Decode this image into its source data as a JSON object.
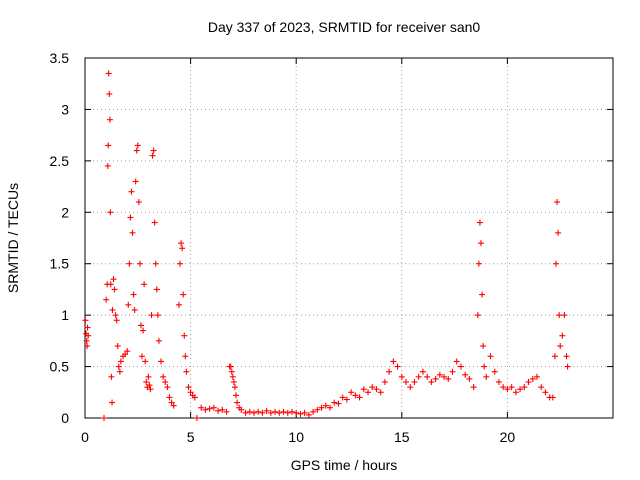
{
  "chart_data": {
    "type": "scatter",
    "title": "Day 337 of 2023, SRMTID for receiver san0",
    "xlabel": "GPS time / hours",
    "ylabel": "SRMTID / TECUs",
    "xlim": [
      0,
      25
    ],
    "ylim": [
      0,
      3.5
    ],
    "x_ticks": [
      0,
      5,
      10,
      15,
      20
    ],
    "y_ticks": [
      0,
      0.5,
      1,
      1.5,
      2,
      2.5,
      3,
      3.5
    ],
    "x_tick_labels": [
      "0",
      "5",
      "10",
      "15",
      "20"
    ],
    "y_tick_labels": [
      "0",
      "0.5",
      "1",
      "1.5",
      "2",
      "2.5",
      "3",
      "3.5"
    ],
    "grid": true,
    "marker": "+",
    "colors": {
      "series": "#ff0000",
      "grid": "#a0a0a0",
      "axis": "#000000"
    },
    "series": [
      {
        "name": "san0",
        "points": [
          [
            0.02,
            0.95
          ],
          [
            0.05,
            0.82
          ],
          [
            0.08,
            0.75
          ],
          [
            0.1,
            0.7
          ],
          [
            0.12,
            0.88
          ],
          [
            0.15,
            0.8
          ],
          [
            0.9,
            0.0
          ],
          [
            1.0,
            1.15
          ],
          [
            1.05,
            1.3
          ],
          [
            1.08,
            2.45
          ],
          [
            1.1,
            2.65
          ],
          [
            1.12,
            3.35
          ],
          [
            1.15,
            3.15
          ],
          [
            1.18,
            2.9
          ],
          [
            1.2,
            2.0
          ],
          [
            1.22,
            1.3
          ],
          [
            1.25,
            0.4
          ],
          [
            1.28,
            0.15
          ],
          [
            1.3,
            1.05
          ],
          [
            1.35,
            1.35
          ],
          [
            1.4,
            1.25
          ],
          [
            1.45,
            1.0
          ],
          [
            1.5,
            0.95
          ],
          [
            1.55,
            0.7
          ],
          [
            1.6,
            0.5
          ],
          [
            1.65,
            0.45
          ],
          [
            1.7,
            0.55
          ],
          [
            1.8,
            0.6
          ],
          [
            1.9,
            0.62
          ],
          [
            2.0,
            0.65
          ],
          [
            2.05,
            1.1
          ],
          [
            2.1,
            1.5
          ],
          [
            2.15,
            1.95
          ],
          [
            2.2,
            2.2
          ],
          [
            2.25,
            1.8
          ],
          [
            2.3,
            1.2
          ],
          [
            2.35,
            1.05
          ],
          [
            2.4,
            2.3
          ],
          [
            2.45,
            2.6
          ],
          [
            2.5,
            2.65
          ],
          [
            2.55,
            2.1
          ],
          [
            2.6,
            1.5
          ],
          [
            2.65,
            0.9
          ],
          [
            2.7,
            0.6
          ],
          [
            2.75,
            0.85
          ],
          [
            2.8,
            1.3
          ],
          [
            2.85,
            0.55
          ],
          [
            2.9,
            0.35
          ],
          [
            2.95,
            0.3
          ],
          [
            3.0,
            0.4
          ],
          [
            3.05,
            0.32
          ],
          [
            3.1,
            0.28
          ],
          [
            3.15,
            1.0
          ],
          [
            3.2,
            2.55
          ],
          [
            3.25,
            2.6
          ],
          [
            3.3,
            1.9
          ],
          [
            3.35,
            1.5
          ],
          [
            3.4,
            1.25
          ],
          [
            3.45,
            1.0
          ],
          [
            3.5,
            0.75
          ],
          [
            3.6,
            0.55
          ],
          [
            3.7,
            0.4
          ],
          [
            3.8,
            0.35
          ],
          [
            3.9,
            0.3
          ],
          [
            4.0,
            0.2
          ],
          [
            4.1,
            0.15
          ],
          [
            4.2,
            0.12
          ],
          [
            4.45,
            1.1
          ],
          [
            4.5,
            1.5
          ],
          [
            4.55,
            1.7
          ],
          [
            4.6,
            1.65
          ],
          [
            4.65,
            1.2
          ],
          [
            4.7,
            0.8
          ],
          [
            4.75,
            0.6
          ],
          [
            4.8,
            0.45
          ],
          [
            4.9,
            0.3
          ],
          [
            5.0,
            0.25
          ],
          [
            5.1,
            0.22
          ],
          [
            5.2,
            0.2
          ],
          [
            5.3,
            0.0
          ],
          [
            5.5,
            0.1
          ],
          [
            5.7,
            0.08
          ],
          [
            5.9,
            0.09
          ],
          [
            6.1,
            0.1
          ],
          [
            6.3,
            0.07
          ],
          [
            6.5,
            0.08
          ],
          [
            6.7,
            0.06
          ],
          [
            6.85,
            0.5
          ],
          [
            6.9,
            0.5
          ],
          [
            6.95,
            0.45
          ],
          [
            7.0,
            0.4
          ],
          [
            7.05,
            0.35
          ],
          [
            7.1,
            0.3
          ],
          [
            7.15,
            0.22
          ],
          [
            7.2,
            0.15
          ],
          [
            7.3,
            0.1
          ],
          [
            7.4,
            0.08
          ],
          [
            7.6,
            0.05
          ],
          [
            7.8,
            0.06
          ],
          [
            8.0,
            0.05
          ],
          [
            8.2,
            0.06
          ],
          [
            8.4,
            0.05
          ],
          [
            8.6,
            0.07
          ],
          [
            8.8,
            0.05
          ],
          [
            9.0,
            0.06
          ],
          [
            9.2,
            0.05
          ],
          [
            9.4,
            0.06
          ],
          [
            9.6,
            0.05
          ],
          [
            9.8,
            0.06
          ],
          [
            10.0,
            0.05
          ],
          [
            10.2,
            0.04
          ],
          [
            10.4,
            0.05
          ],
          [
            10.6,
            0.03
          ],
          [
            10.8,
            0.06
          ],
          [
            11.0,
            0.08
          ],
          [
            11.2,
            0.1
          ],
          [
            11.4,
            0.12
          ],
          [
            11.6,
            0.1
          ],
          [
            11.8,
            0.15
          ],
          [
            12.0,
            0.14
          ],
          [
            12.2,
            0.2
          ],
          [
            12.4,
            0.18
          ],
          [
            12.6,
            0.25
          ],
          [
            12.8,
            0.22
          ],
          [
            13.0,
            0.2
          ],
          [
            13.2,
            0.28
          ],
          [
            13.4,
            0.25
          ],
          [
            13.6,
            0.3
          ],
          [
            13.8,
            0.28
          ],
          [
            14.0,
            0.25
          ],
          [
            14.2,
            0.35
          ],
          [
            14.4,
            0.45
          ],
          [
            14.6,
            0.55
          ],
          [
            14.8,
            0.5
          ],
          [
            15.0,
            0.4
          ],
          [
            15.2,
            0.35
          ],
          [
            15.4,
            0.3
          ],
          [
            15.6,
            0.35
          ],
          [
            15.8,
            0.4
          ],
          [
            16.0,
            0.45
          ],
          [
            16.2,
            0.4
          ],
          [
            16.4,
            0.35
          ],
          [
            16.6,
            0.38
          ],
          [
            16.8,
            0.42
          ],
          [
            17.0,
            0.4
          ],
          [
            17.2,
            0.38
          ],
          [
            17.4,
            0.45
          ],
          [
            17.6,
            0.55
          ],
          [
            17.8,
            0.5
          ],
          [
            18.0,
            0.42
          ],
          [
            18.2,
            0.38
          ],
          [
            18.4,
            0.3
          ],
          [
            18.6,
            1.0
          ],
          [
            18.65,
            1.5
          ],
          [
            18.7,
            1.9
          ],
          [
            18.75,
            1.7
          ],
          [
            18.8,
            1.2
          ],
          [
            18.85,
            0.7
          ],
          [
            18.9,
            0.5
          ],
          [
            19.0,
            0.4
          ],
          [
            19.2,
            0.6
          ],
          [
            19.4,
            0.45
          ],
          [
            19.6,
            0.35
          ],
          [
            19.8,
            0.3
          ],
          [
            20.0,
            0.28
          ],
          [
            20.2,
            0.3
          ],
          [
            20.4,
            0.25
          ],
          [
            20.6,
            0.28
          ],
          [
            20.8,
            0.3
          ],
          [
            21.0,
            0.35
          ],
          [
            21.2,
            0.38
          ],
          [
            21.4,
            0.4
          ],
          [
            21.6,
            0.3
          ],
          [
            21.8,
            0.25
          ],
          [
            22.0,
            0.2
          ],
          [
            22.15,
            0.2
          ],
          [
            22.25,
            0.6
          ],
          [
            22.3,
            1.5
          ],
          [
            22.35,
            2.1
          ],
          [
            22.4,
            1.8
          ],
          [
            22.45,
            1.0
          ],
          [
            22.5,
            0.7
          ],
          [
            22.6,
            0.8
          ],
          [
            22.7,
            1.0
          ],
          [
            22.8,
            0.6
          ],
          [
            22.85,
            0.5
          ]
        ]
      }
    ]
  }
}
